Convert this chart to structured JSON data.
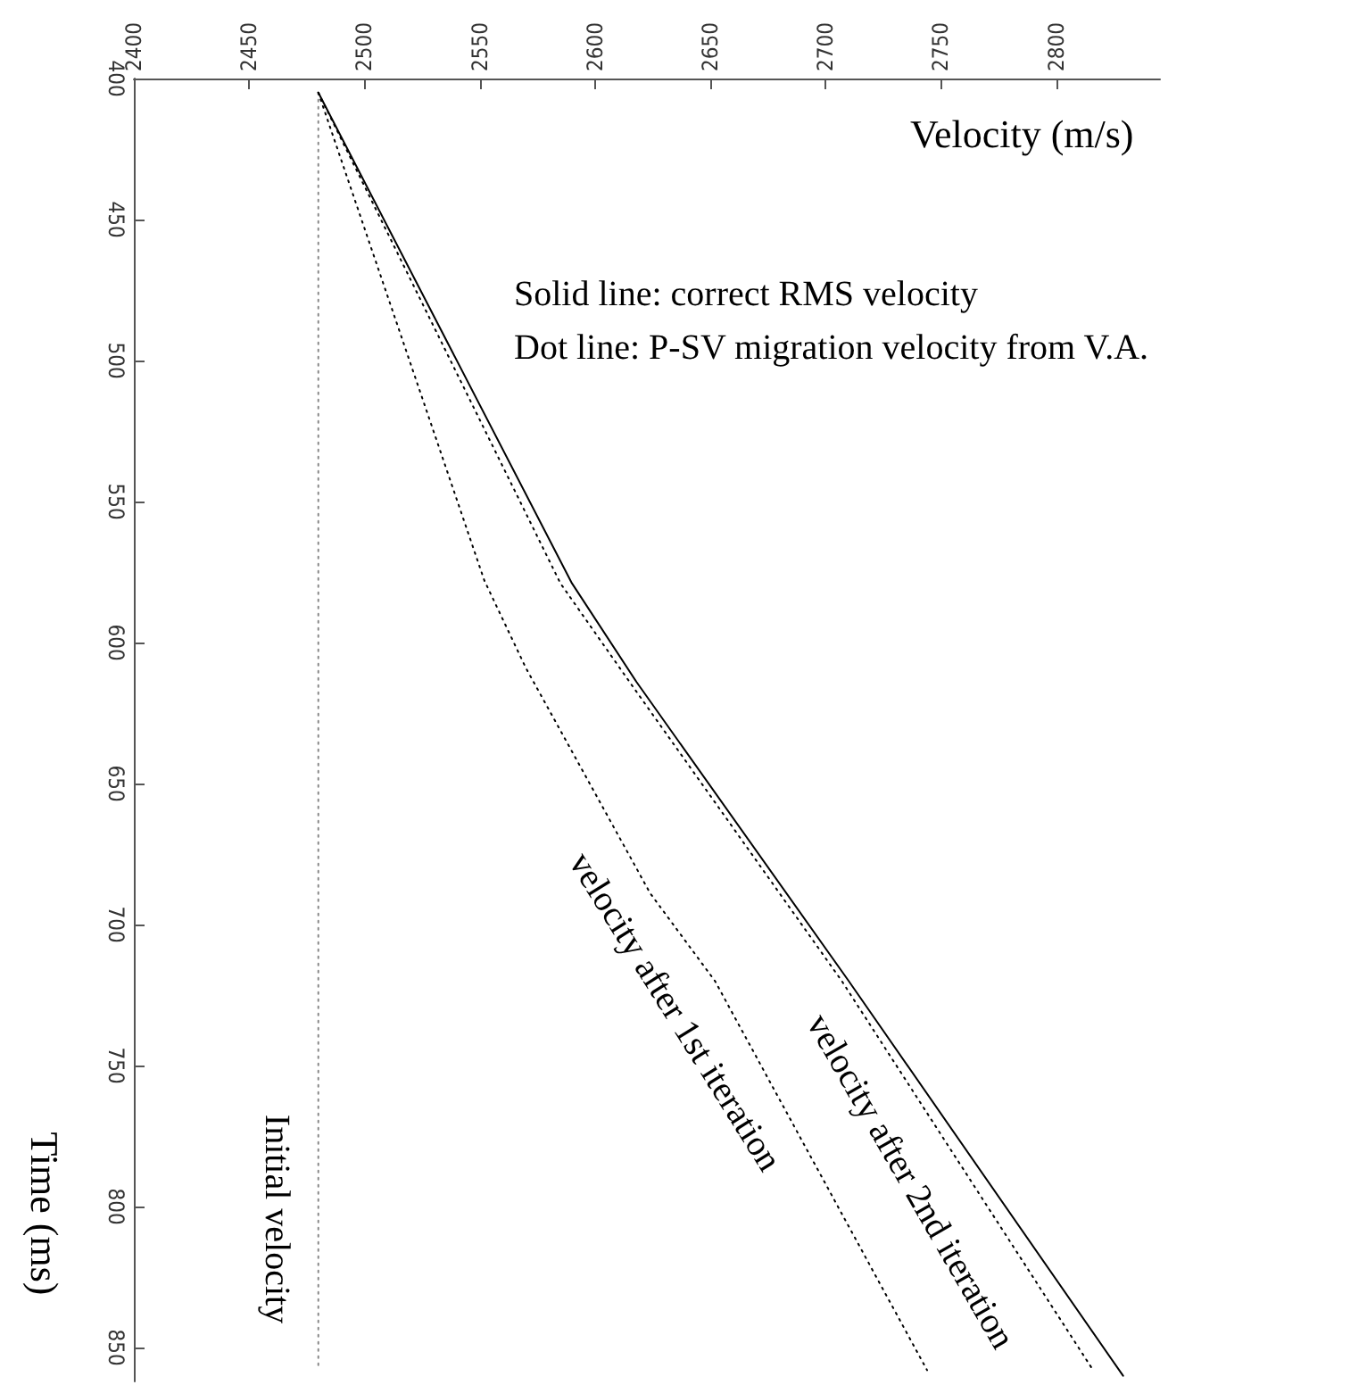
{
  "chart_data": {
    "type": "line",
    "xlabel": "Velocity (m/s)",
    "ylabel": "Time (ms)",
    "xlim": [
      2400,
      2845
    ],
    "xticks": [
      2400,
      2450,
      2500,
      2550,
      2600,
      2650,
      2700,
      2750,
      2800
    ],
    "ylim": [
      862,
      400
    ],
    "yticks": [
      400,
      450,
      500,
      550,
      600,
      650,
      700,
      750,
      800,
      850
    ],
    "grid": false,
    "marker": "none",
    "series": [
      {
        "color": "#000000",
        "line_style": "solid",
        "x": [
          2480,
          2590,
          2618,
          2710,
          2829
        ],
        "values": [
          405,
          579,
          614,
          720,
          860
        ]
      },
      {
        "color": "#000000",
        "line_style": "dotted",
        "x": [
          2480,
          2585,
          2615,
          2707,
          2816
        ],
        "values": [
          405,
          579,
          614,
          720,
          858
        ]
      },
      {
        "color": "#000000",
        "line_style": "dotted",
        "x": [
          2480,
          2552,
          2570,
          2624,
          2652,
          2744
        ],
        "values": [
          405,
          578,
          609,
          689,
          720,
          858
        ]
      },
      {
        "color": "#888888",
        "line_style": "dotted",
        "x": [
          2480,
          2480
        ],
        "values": [
          405,
          858
        ]
      }
    ],
    "annotations": [
      "Solid line: correct RMS velocity",
      "Dot line: P-SV migration velocity from V.A.",
      "Initial velocity",
      "velocity after 1st iteration",
      "velocity after 2nd iteration"
    ]
  }
}
